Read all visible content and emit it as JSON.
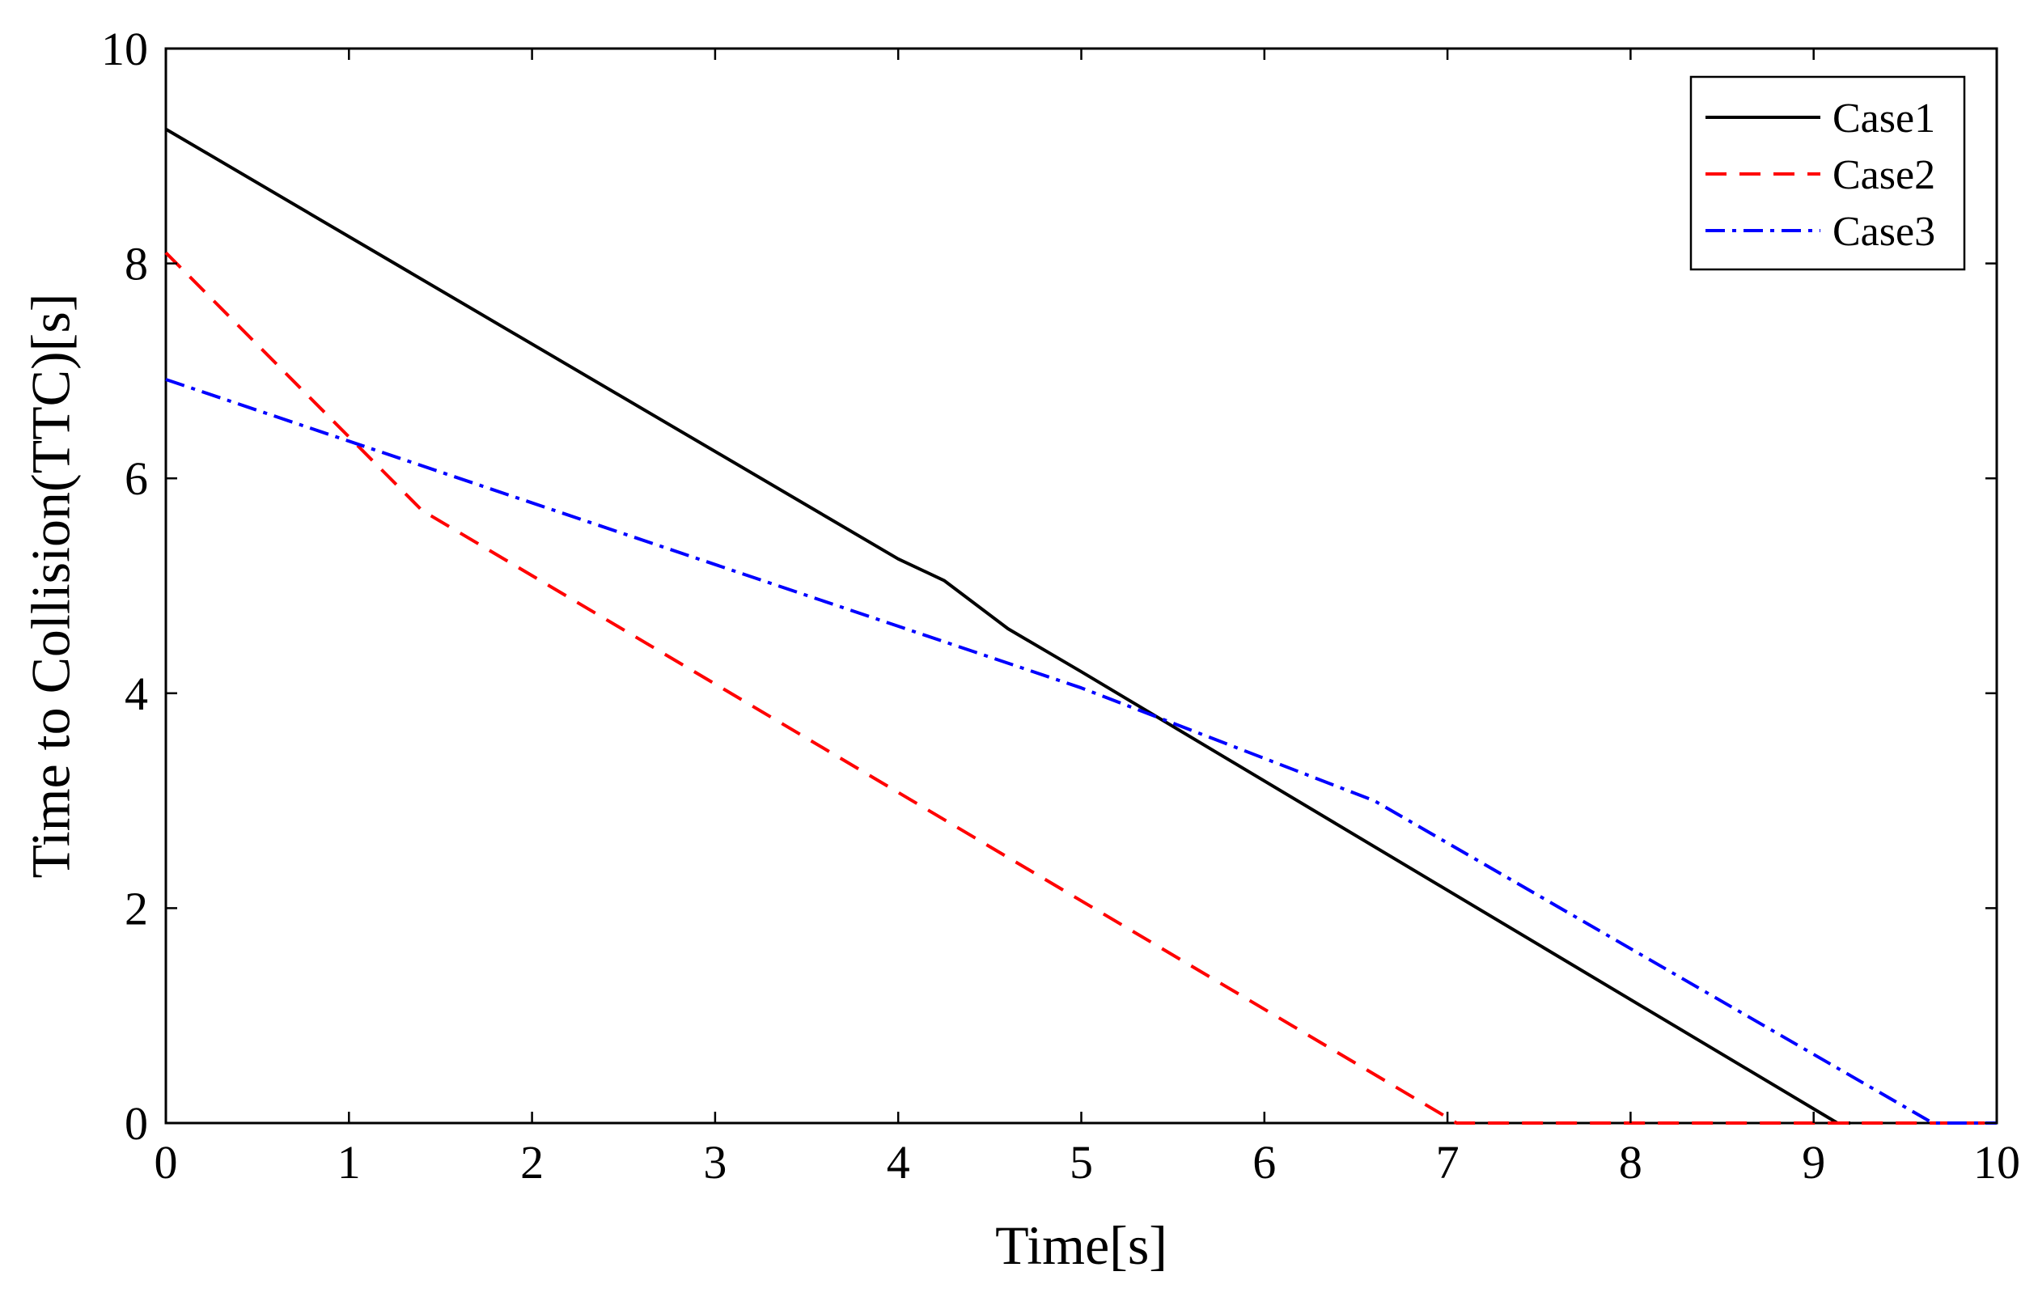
{
  "chart_data": {
    "type": "line",
    "title": "",
    "xlabel": "Time[s]",
    "ylabel": "Time to Collision(TTC)[s]",
    "xlim": [
      0,
      10
    ],
    "ylim": [
      0,
      10
    ],
    "xticks": [
      "0",
      "1",
      "2",
      "3",
      "4",
      "5",
      "6",
      "7",
      "8",
      "9",
      "10"
    ],
    "yticks": [
      "0",
      "2",
      "4",
      "6",
      "8",
      "10"
    ],
    "grid": false,
    "legend_position": "top-right",
    "series": [
      {
        "name": "Case1",
        "color": "#000000",
        "style": "solid",
        "x": [
          0,
          4.0,
          4.25,
          4.6,
          4.85,
          5.0,
          9.13,
          9.2
        ],
        "y": [
          9.25,
          5.25,
          5.05,
          4.6,
          4.35,
          4.2,
          0.0,
          0.0
        ]
      },
      {
        "name": "Case2",
        "color": "#ff0000",
        "style": "dashed",
        "x": [
          0,
          1.4,
          7.05,
          10.0
        ],
        "y": [
          8.1,
          5.7,
          0.0,
          0.0
        ]
      },
      {
        "name": "Case3",
        "color": "#0000ff",
        "style": "dashdot",
        "x": [
          0,
          5.0,
          6.6,
          9.65,
          10.0
        ],
        "y": [
          6.92,
          4.05,
          3.0,
          0.0,
          0.0
        ]
      }
    ]
  }
}
